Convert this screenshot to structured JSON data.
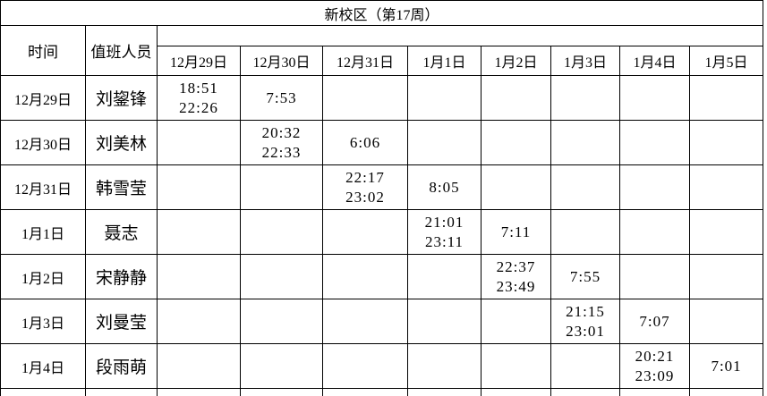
{
  "title": "新校区（第17周）",
  "header": {
    "time_label": "时间",
    "staff_label": "值班人员",
    "date_columns": [
      "12月29日",
      "12月30日",
      "12月31日",
      "1月1日",
      "1月2日",
      "1月3日",
      "1月4日",
      "1月5日"
    ]
  },
  "rows": [
    {
      "date": "12月29日",
      "name": "刘鋆锋",
      "cells": [
        "18:51\n22:26",
        "7:53",
        "",
        "",
        "",
        "",
        "",
        ""
      ]
    },
    {
      "date": "12月30日",
      "name": "刘美林",
      "cells": [
        "",
        "20:32\n22:33",
        "6:06",
        "",
        "",
        "",
        "",
        ""
      ]
    },
    {
      "date": "12月31日",
      "name": "韩雪莹",
      "cells": [
        "",
        "",
        "22:17\n23:02",
        "8:05",
        "",
        "",
        "",
        ""
      ]
    },
    {
      "date": "1月1日",
      "name": "聂志",
      "cells": [
        "",
        "",
        "",
        "21:01\n23:11",
        "7:11",
        "",
        "",
        ""
      ]
    },
    {
      "date": "1月2日",
      "name": "宋静静",
      "cells": [
        "",
        "",
        "",
        "",
        "22:37\n23:49",
        "7:55",
        "",
        ""
      ]
    },
    {
      "date": "1月3日",
      "name": "刘曼莹",
      "cells": [
        "",
        "",
        "",
        "",
        "",
        "21:15\n23:01",
        "7:07",
        ""
      ]
    },
    {
      "date": "1月4日",
      "name": "段雨萌",
      "cells": [
        "",
        "",
        "",
        "",
        "",
        "",
        "20:21\n23:09",
        "7:01"
      ]
    }
  ],
  "colors": {
    "background": "#ffffff",
    "border": "#000000",
    "text": "#000000"
  }
}
